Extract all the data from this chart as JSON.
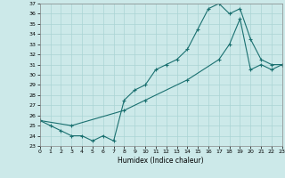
{
  "xlabel": "Humidex (Indice chaleur)",
  "background_color": "#cce9e9",
  "line_color": "#1a7070",
  "ylim": [
    23,
    37
  ],
  "xlim": [
    0,
    23
  ],
  "yticks": [
    23,
    24,
    25,
    26,
    27,
    28,
    29,
    30,
    31,
    32,
    33,
    34,
    35,
    36,
    37
  ],
  "xticks": [
    0,
    1,
    2,
    3,
    4,
    5,
    6,
    7,
    8,
    9,
    10,
    11,
    12,
    13,
    14,
    15,
    16,
    17,
    18,
    19,
    20,
    21,
    22,
    23
  ],
  "line1_x": [
    0,
    1,
    2,
    3,
    4,
    5,
    6,
    7,
    8,
    9,
    10,
    11,
    12,
    13,
    14,
    15,
    16,
    17,
    18,
    19,
    20,
    21,
    22,
    23
  ],
  "line1_y": [
    25.5,
    25.0,
    24.5,
    24.0,
    24.0,
    23.5,
    24.0,
    23.5,
    27.5,
    28.5,
    29.0,
    30.5,
    31.0,
    31.5,
    32.5,
    34.5,
    36.5,
    37.0,
    36.0,
    36.5,
    33.5,
    31.5,
    31.0,
    31.0
  ],
  "line2_x": [
    0,
    3,
    8,
    10,
    14,
    17,
    18,
    19,
    20,
    21,
    22,
    23
  ],
  "line2_y": [
    25.5,
    25.0,
    26.5,
    27.5,
    29.5,
    31.5,
    33.0,
    35.5,
    30.5,
    31.0,
    30.5,
    31.0
  ]
}
